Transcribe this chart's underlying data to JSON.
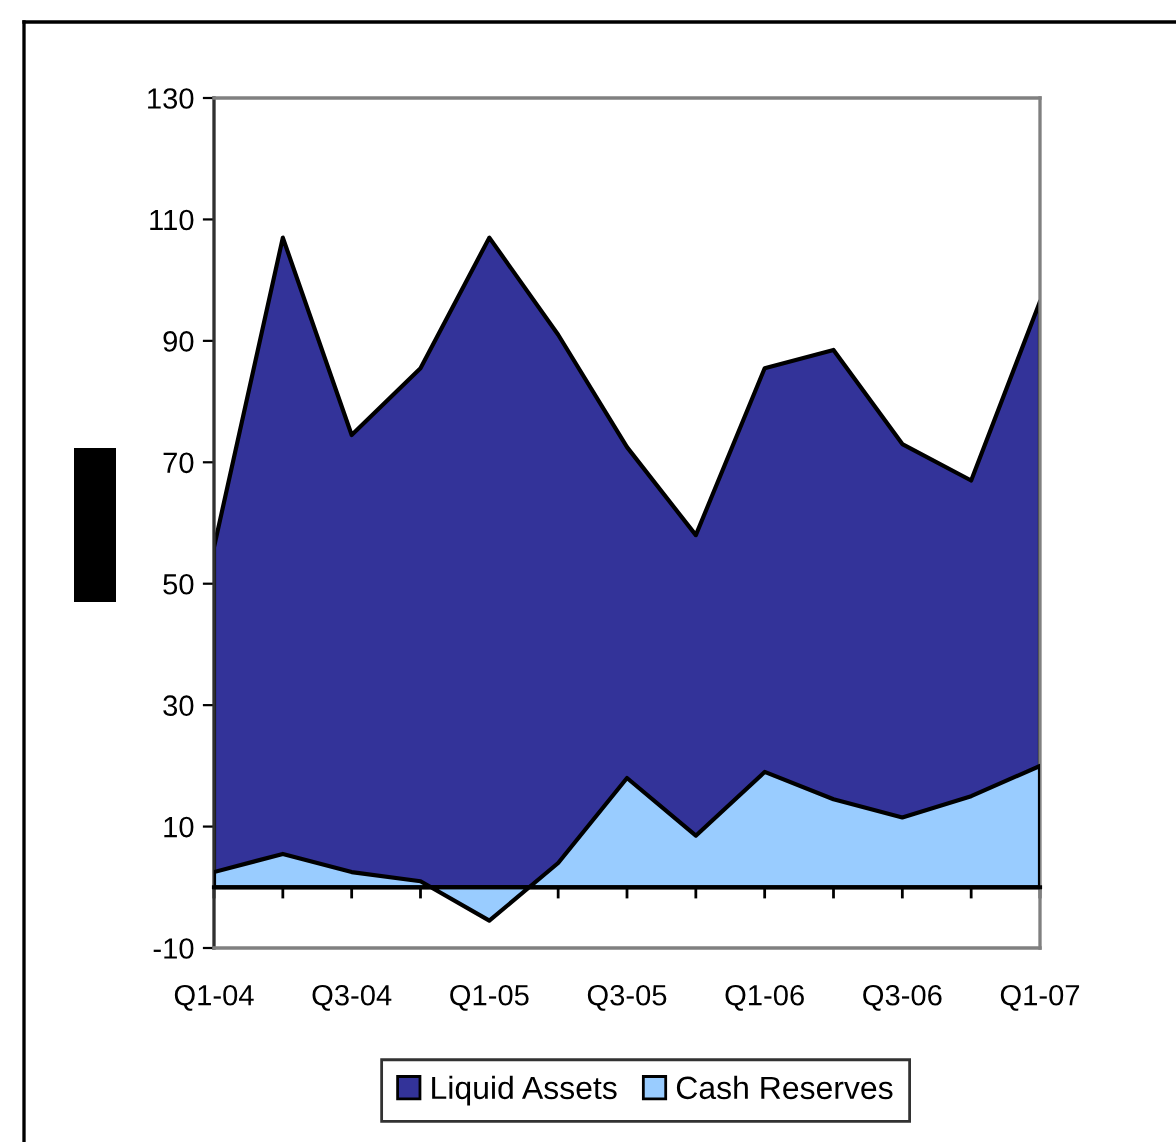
{
  "chart_data": {
    "type": "area",
    "categories": [
      "Q1-04",
      null,
      "Q3-04",
      null,
      "Q1-05",
      null,
      "Q3-05",
      null,
      "Q1-06",
      null,
      "Q3-06",
      null,
      "Q1-07"
    ],
    "series": [
      {
        "name": "Liquid Assets",
        "color": "#333399",
        "values": [
          56,
          107,
          74.5,
          85.5,
          107,
          91,
          72.5,
          58,
          85.5,
          88.5,
          73,
          67,
          96.5
        ]
      },
      {
        "name": "Cash Reserves",
        "color": "#99ccff",
        "values": [
          2.5,
          5.5,
          2.5,
          1,
          -5.5,
          4,
          18,
          8.5,
          19,
          14.5,
          11.5,
          15,
          20
        ]
      }
    ],
    "ylim": [
      -10,
      130
    ],
    "yticks": [
      -10,
      10,
      30,
      50,
      70,
      90,
      110,
      130
    ],
    "legend": "bottom"
  }
}
